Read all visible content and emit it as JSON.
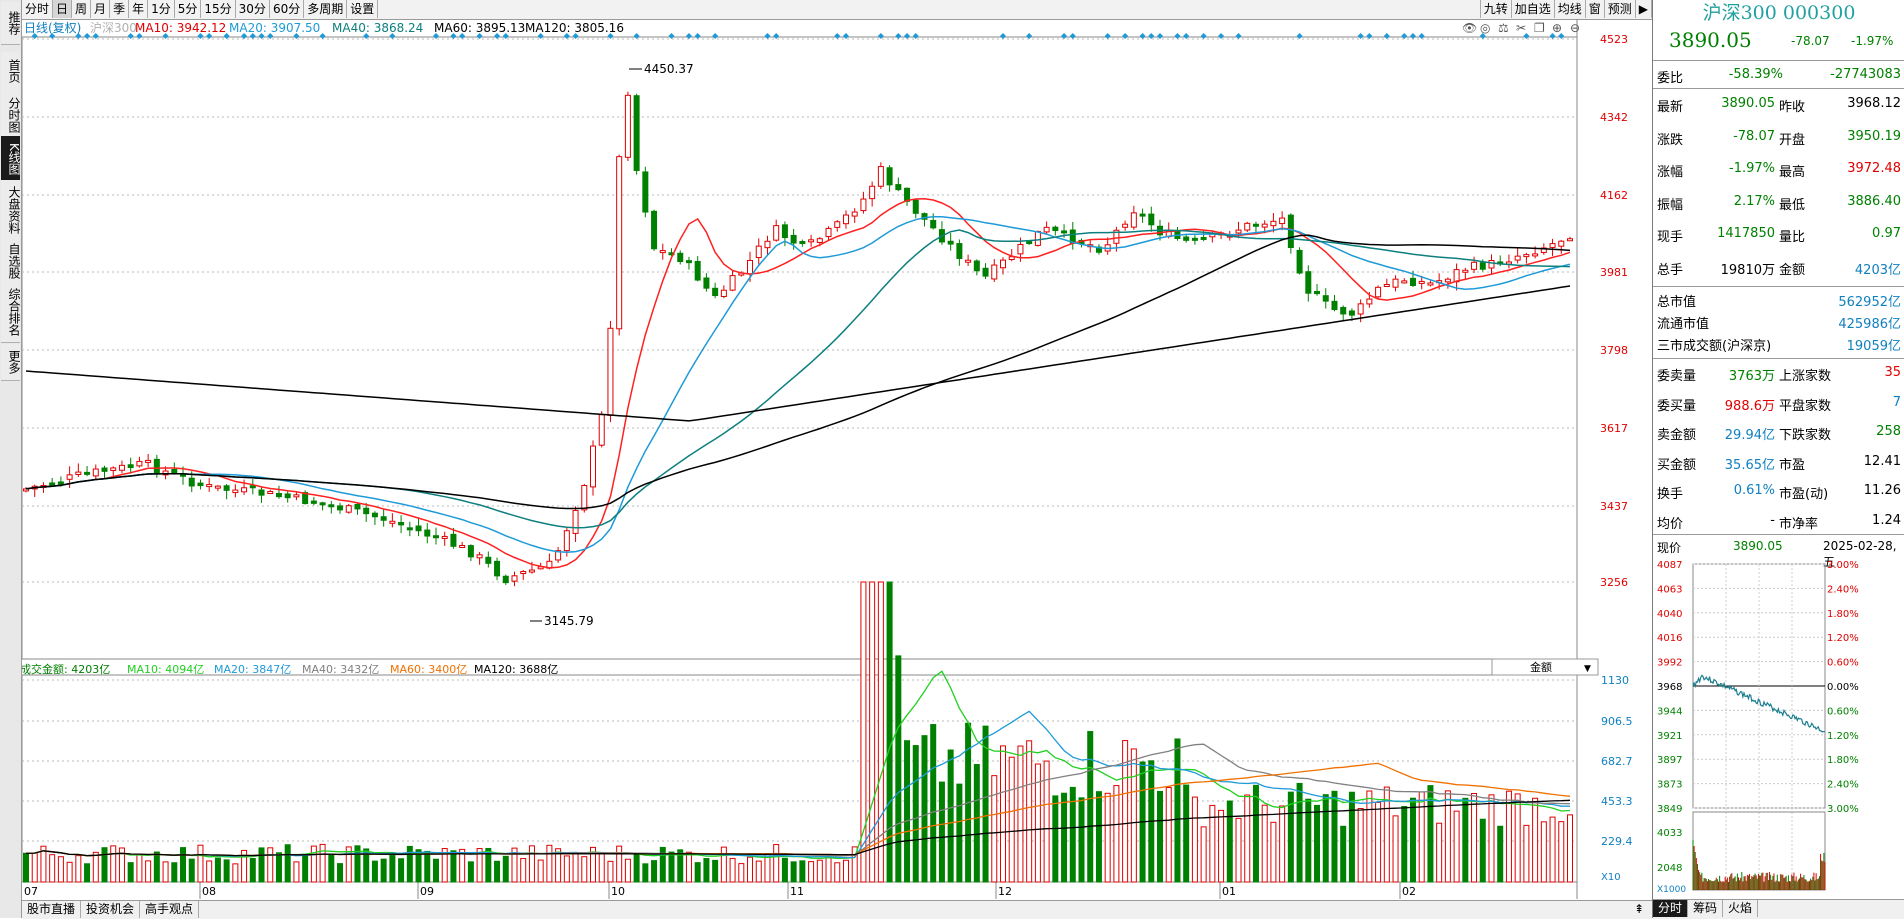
{
  "left_tabs": [
    "推荐",
    "首页",
    "分时图",
    "K线图",
    "大盘资料",
    "自选股",
    "综合排名",
    "更多"
  ],
  "toolbar": {
    "periods": [
      "分时",
      "日",
      "周",
      "月",
      "季",
      "年",
      "1分",
      "5分",
      "15分",
      "30分",
      "60分",
      "多周期",
      "设置"
    ],
    "active_period": "日",
    "right_buttons": [
      "九转",
      "加自选",
      "均线",
      "窗",
      "预测"
    ]
  },
  "kline": {
    "title": "日线(复权)",
    "index_name": "沪深300",
    "ma_labels": [
      {
        "text": "MA10: 3942.12",
        "color": "#e00000"
      },
      {
        "text": "MA20: 3907.50",
        "color": "#1f9ad8"
      },
      {
        "text": "MA40: 3868.24",
        "color": "#0d7f7f"
      },
      {
        "text": "MA60: 3895.13",
        "color": "#000000"
      },
      {
        "text": "MA120: 3805.16",
        "color": "#000000"
      }
    ],
    "y_ticks": [
      "4523",
      "4342",
      "4162",
      "3981",
      "3798",
      "3617",
      "3437",
      "3256"
    ],
    "high_label": "4450.37",
    "low_label": "3145.79",
    "x_labels": [
      "07",
      "08",
      "09",
      "10",
      "11",
      "12",
      "01",
      "02"
    ]
  },
  "volume": {
    "ma_labels": [
      {
        "text": "成交金额: 4203亿",
        "color": "#008000"
      },
      {
        "text": "MA10: 4094亿",
        "color": "#20d020"
      },
      {
        "text": "MA20: 3847亿",
        "color": "#1f9ad8"
      },
      {
        "text": "MA40: 3432亿",
        "color": "#808080"
      },
      {
        "text": "MA60: 3400亿",
        "color": "#f07000"
      },
      {
        "text": "MA120: 3688亿",
        "color": "#000000"
      }
    ],
    "dropdown": "金额",
    "y_ticks": [
      "1130",
      "906.5",
      "682.7",
      "453.3",
      "229.4"
    ],
    "unit": "X10"
  },
  "chart_data": [
    {
      "type": "candlestick",
      "title": "日线(复权)",
      "y_range": [
        3145.79,
        4523
      ],
      "x_months": [
        "07",
        "08",
        "09",
        "10",
        "11",
        "12",
        "01",
        "02"
      ],
      "annotations": {
        "high": 4450.37,
        "low": 3145.79
      },
      "series_last": {
        "MA10": 3942.12,
        "MA20": 3907.5,
        "MA40": 3868.24,
        "MA60": 3895.13,
        "MA120": 3805.16
      }
    },
    {
      "type": "bar",
      "title": "成交金额",
      "y_ticks": [
        229.4,
        453.3,
        682.7,
        906.5,
        1130
      ],
      "series_last": {
        "成交金额": 4203,
        "MA10": 4094,
        "MA20": 3847,
        "MA40": 3432,
        "MA60": 3400,
        "MA120": 3688
      }
    },
    {
      "type": "line",
      "title": "分时",
      "y_ticks_left": [
        "4087",
        "4063",
        "4040",
        "4016",
        "3992",
        "3968",
        "3944",
        "3921",
        "3897",
        "3873",
        "3849"
      ],
      "y_ticks_right": [
        "3.00%",
        "2.40%",
        "1.80%",
        "1.20%",
        "0.60%",
        "0.00%",
        "0.60%",
        "1.20%",
        "1.80%",
        "2.40%",
        "3.00%"
      ],
      "vol_ticks": [
        "4033",
        "2048"
      ],
      "vol_unit": "X1000"
    }
  ],
  "panel": {
    "title": "沪深300 000300",
    "price": "3890.05",
    "change": "-78.07",
    "pct": "-1.97%",
    "weibi_label": "委比",
    "weibi_pct": "-58.39%",
    "weibi_val": "-27743083",
    "quote_rows": [
      {
        "l1": "最新",
        "v1": "3890.05",
        "c1": "g",
        "l2": "昨收",
        "v2": "3968.12",
        "c2": "k"
      },
      {
        "l1": "涨跌",
        "v1": "-78.07",
        "c1": "g",
        "l2": "开盘",
        "v2": "3950.19",
        "c2": "g"
      },
      {
        "l1": "涨幅",
        "v1": "-1.97%",
        "c1": "g",
        "l2": "最高",
        "v2": "3972.48",
        "c2": "r"
      },
      {
        "l1": "振幅",
        "v1": "2.17%",
        "c1": "g",
        "l2": "最低",
        "v2": "3886.40",
        "c2": "g"
      },
      {
        "l1": "现手",
        "v1": "1417850",
        "c1": "g",
        "l2": "量比",
        "v2": "0.97",
        "c2": "g"
      },
      {
        "l1": "总手",
        "v1": "19810万",
        "c1": "k",
        "l2": "金额",
        "v2": "4203亿",
        "c2": "b"
      }
    ],
    "mkt_rows": [
      {
        "l": "总市值",
        "v": "562952亿"
      },
      {
        "l": "流通市值",
        "v": "425986亿"
      },
      {
        "l": "三市成交额(沪深京)",
        "v": "19059亿"
      }
    ],
    "breadth_rows": [
      {
        "l1": "委卖量",
        "v1": "3763万",
        "c1": "g",
        "l2": "上涨家数",
        "v2": "35",
        "c2": "r"
      },
      {
        "l1": "委买量",
        "v1": "988.6万",
        "c1": "r",
        "l2": "平盘家数",
        "v2": "7",
        "c2": "b"
      },
      {
        "l1": "卖金额",
        "v1": "29.94亿",
        "c1": "b",
        "l2": "下跌家数",
        "v2": "258",
        "c2": "g"
      },
      {
        "l1": "买金额",
        "v1": "35.65亿",
        "c1": "b",
        "l2": "市盈",
        "v2": "12.41",
        "c2": "k"
      },
      {
        "l1": "换手",
        "v1": "0.61%",
        "c1": "b",
        "l2": "市盈(动)",
        "v2": "11.26",
        "c2": "k"
      },
      {
        "l1": "均价",
        "v1": "-",
        "c1": "k",
        "l2": "市净率",
        "v2": "1.24",
        "c2": "k"
      }
    ],
    "now_label": "现价",
    "now_price": "3890.05",
    "now_date": "2025-02-28,五",
    "tabs": [
      "分时",
      "筹码",
      "火焰"
    ],
    "active_tab": "分时"
  },
  "bottom_tabs": [
    "股市直播",
    "投资机会",
    "高手观点"
  ],
  "colors": {
    "up": "#e00000",
    "down": "#008000",
    "ma10": "#ff2020",
    "ma20": "#1f9ad8",
    "ma40": "#0d7f7f",
    "ma60": "#000000"
  }
}
